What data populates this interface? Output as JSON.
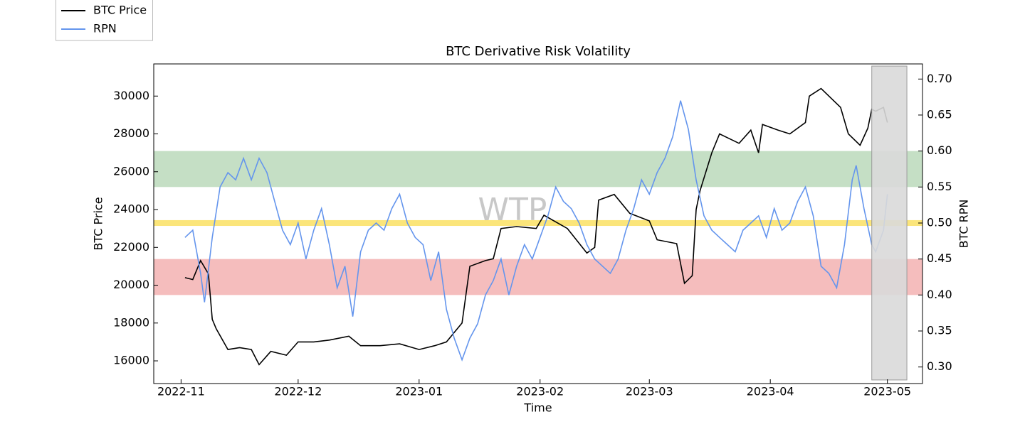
{
  "chart_data": {
    "type": "line",
    "title": "BTC Derivative Risk Volatility",
    "watermark": "WTP",
    "x_label": "Time",
    "y_label": "BTC Price",
    "y2_label": "BTC RPN",
    "xlim": [
      "2022-10-25",
      "2023-05-10"
    ],
    "xticks": [
      "2022-11",
      "2022-12",
      "2023-01",
      "2023-02",
      "2023-03",
      "2023-04",
      "2023-05"
    ],
    "ylim": [
      14800,
      31700
    ],
    "yticks": [
      16000,
      18000,
      20000,
      22000,
      24000,
      26000,
      28000,
      30000
    ],
    "y2lim": [
      0.277,
      0.721
    ],
    "y2ticks": [
      {
        "value": 0.3,
        "label": "0.30"
      },
      {
        "value": 0.35,
        "label": "0.35"
      },
      {
        "value": 0.4,
        "label": "0.40"
      },
      {
        "value": 0.45,
        "label": "0.45"
      },
      {
        "value": 0.5,
        "label": "0.50"
      },
      {
        "value": 0.55,
        "label": "0.55"
      },
      {
        "value": 0.6,
        "label": "0.60"
      },
      {
        "value": 0.65,
        "label": "0.65"
      },
      {
        "value": 0.7,
        "label": "0.70"
      }
    ],
    "bands": [
      {
        "y2": [
          0.55,
          0.6
        ],
        "color": "#c5dfc5"
      },
      {
        "y2": [
          0.4,
          0.45
        ],
        "color": "#f5bdbd"
      },
      {
        "y2": [
          0.496,
          0.504
        ],
        "color": "#fbe57a"
      }
    ],
    "highlight": {
      "x": [
        "2023-04-27",
        "2023-05-06"
      ],
      "y2": [
        0.282,
        0.718
      ],
      "color": "#d9d9d9"
    },
    "legend": "top-left-outside",
    "series": [
      {
        "name": "BTC Price",
        "color": "#000000",
        "x": [
          "2022-11-02",
          "2022-11-04",
          "2022-11-06",
          "2022-11-08",
          "2022-11-09",
          "2022-11-10",
          "2022-11-13",
          "2022-11-16",
          "2022-11-19",
          "2022-11-21",
          "2022-11-24",
          "2022-11-28",
          "2022-12-01",
          "2022-12-05",
          "2022-12-09",
          "2022-12-14",
          "2022-12-17",
          "2022-12-22",
          "2022-12-27",
          "2023-01-01",
          "2023-01-05",
          "2023-01-08",
          "2023-01-12",
          "2023-01-14",
          "2023-01-18",
          "2023-01-20",
          "2023-01-22",
          "2023-01-26",
          "2023-01-31",
          "2023-02-02",
          "2023-02-08",
          "2023-02-13",
          "2023-02-15",
          "2023-02-16",
          "2023-02-20",
          "2023-02-24",
          "2023-03-01",
          "2023-03-03",
          "2023-03-08",
          "2023-03-10",
          "2023-03-12",
          "2023-03-13",
          "2023-03-14",
          "2023-03-17",
          "2023-03-19",
          "2023-03-24",
          "2023-03-27",
          "2023-03-29",
          "2023-03-30",
          "2023-04-03",
          "2023-04-06",
          "2023-04-10",
          "2023-04-11",
          "2023-04-14",
          "2023-04-19",
          "2023-04-21",
          "2023-04-24",
          "2023-04-26",
          "2023-04-27",
          "2023-04-28",
          "2023-04-30",
          "2023-05-01"
        ],
        "values": [
          20400,
          20300,
          21300,
          20600,
          18200,
          17700,
          16600,
          16700,
          16600,
          15800,
          16500,
          16300,
          17000,
          17000,
          17100,
          17300,
          16800,
          16800,
          16900,
          16600,
          16800,
          17000,
          18000,
          21000,
          21300,
          21400,
          23000,
          23100,
          23000,
          23700,
          23000,
          21700,
          22000,
          24500,
          24800,
          23800,
          23400,
          22400,
          22200,
          20100,
          20500,
          24000,
          25000,
          27000,
          28000,
          27500,
          28200,
          27000,
          28500,
          28200,
          28000,
          28600,
          30000,
          30400,
          29400,
          28000,
          27400,
          28300,
          29300,
          29200,
          29400,
          28600
        ]
      },
      {
        "name": "RPN",
        "color": "#6495ed",
        "axis": "y2",
        "x": [
          "2022-11-02",
          "2022-11-04",
          "2022-11-06",
          "2022-11-07",
          "2022-11-09",
          "2022-11-11",
          "2022-11-13",
          "2022-11-15",
          "2022-11-17",
          "2022-11-19",
          "2022-11-21",
          "2022-11-23",
          "2022-11-25",
          "2022-11-27",
          "2022-11-29",
          "2022-12-01",
          "2022-12-03",
          "2022-12-05",
          "2022-12-07",
          "2022-12-09",
          "2022-12-11",
          "2022-12-13",
          "2022-12-15",
          "2022-12-17",
          "2022-12-19",
          "2022-12-21",
          "2022-12-23",
          "2022-12-25",
          "2022-12-27",
          "2022-12-29",
          "2022-12-31",
          "2023-01-02",
          "2023-01-04",
          "2023-01-06",
          "2023-01-08",
          "2023-01-10",
          "2023-01-12",
          "2023-01-14",
          "2023-01-16",
          "2023-01-18",
          "2023-01-20",
          "2023-01-22",
          "2023-01-24",
          "2023-01-26",
          "2023-01-28",
          "2023-01-30",
          "2023-02-01",
          "2023-02-03",
          "2023-02-05",
          "2023-02-07",
          "2023-02-09",
          "2023-02-11",
          "2023-02-13",
          "2023-02-15",
          "2023-02-17",
          "2023-02-19",
          "2023-02-21",
          "2023-02-23",
          "2023-02-25",
          "2023-02-27",
          "2023-03-01",
          "2023-03-03",
          "2023-03-05",
          "2023-03-07",
          "2023-03-09",
          "2023-03-11",
          "2023-03-13",
          "2023-03-15",
          "2023-03-17",
          "2023-03-19",
          "2023-03-21",
          "2023-03-23",
          "2023-03-25",
          "2023-03-27",
          "2023-03-29",
          "2023-03-31",
          "2023-04-02",
          "2023-04-04",
          "2023-04-06",
          "2023-04-08",
          "2023-04-10",
          "2023-04-12",
          "2023-04-14",
          "2023-04-16",
          "2023-04-18",
          "2023-04-20",
          "2023-04-22",
          "2023-04-23",
          "2023-04-25",
          "2023-04-27",
          "2023-04-28",
          "2023-04-30",
          "2023-05-01"
        ],
        "values": [
          0.48,
          0.49,
          0.43,
          0.39,
          0.48,
          0.55,
          0.57,
          0.56,
          0.59,
          0.56,
          0.59,
          0.57,
          0.53,
          0.49,
          0.47,
          0.5,
          0.45,
          0.49,
          0.52,
          0.47,
          0.41,
          0.44,
          0.37,
          0.46,
          0.49,
          0.5,
          0.49,
          0.52,
          0.54,
          0.5,
          0.48,
          0.47,
          0.42,
          0.46,
          0.38,
          0.34,
          0.31,
          0.34,
          0.36,
          0.4,
          0.42,
          0.45,
          0.4,
          0.44,
          0.47,
          0.45,
          0.48,
          0.51,
          0.55,
          0.53,
          0.52,
          0.5,
          0.47,
          0.45,
          0.44,
          0.43,
          0.45,
          0.49,
          0.52,
          0.56,
          0.54,
          0.57,
          0.59,
          0.62,
          0.67,
          0.63,
          0.56,
          0.51,
          0.49,
          0.48,
          0.47,
          0.46,
          0.49,
          0.5,
          0.51,
          0.48,
          0.52,
          0.49,
          0.5,
          0.53,
          0.55,
          0.51,
          0.44,
          0.43,
          0.41,
          0.47,
          0.56,
          0.58,
          0.52,
          0.47,
          0.46,
          0.49,
          0.54
        ]
      }
    ]
  }
}
